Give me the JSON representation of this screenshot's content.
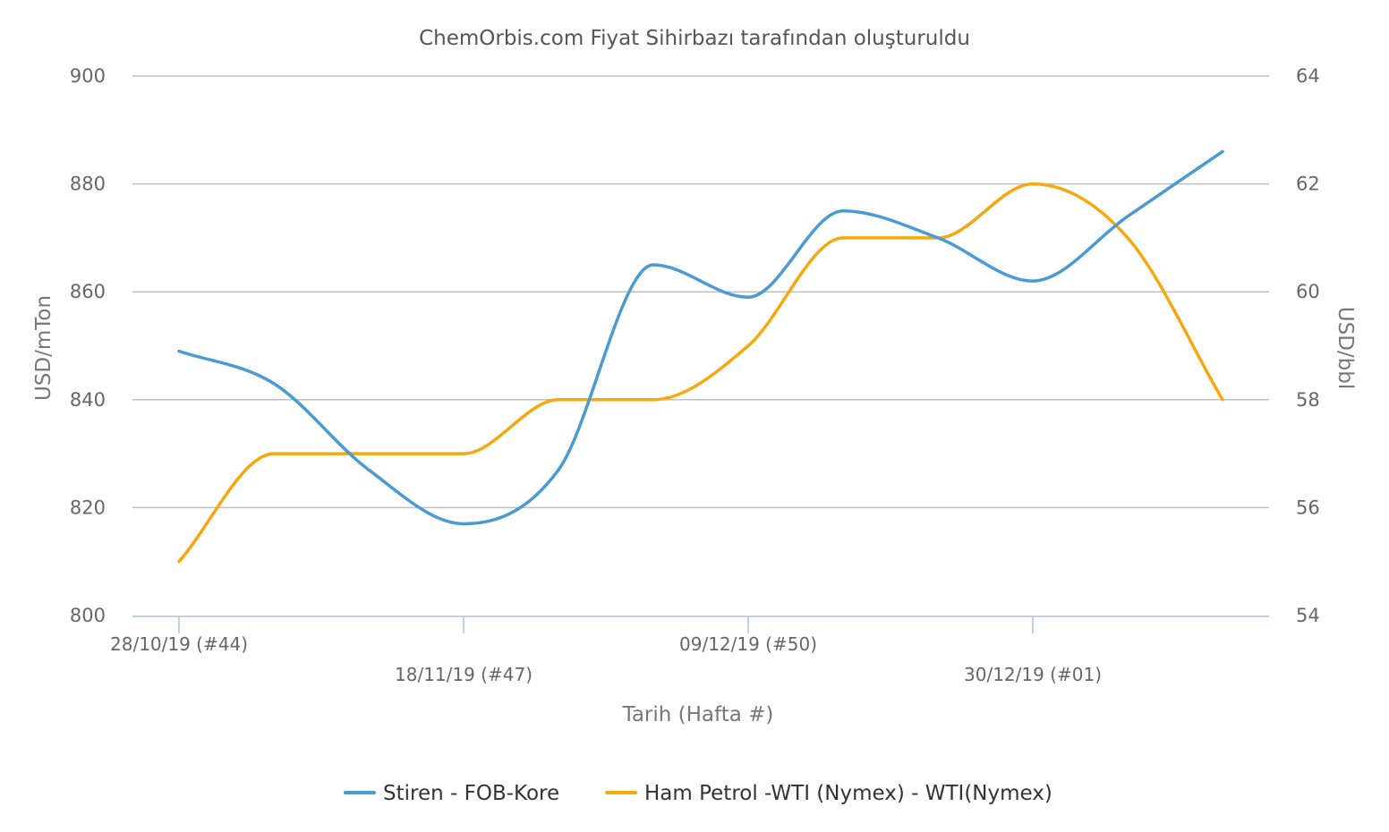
{
  "chart_data": {
    "type": "line",
    "title": "ChemOrbis.com Fiyat Sihirbazı tarafından oluşturuldu",
    "xlabel": "Tarih (Hafta #)",
    "ylabel_left": "USD/mTon",
    "ylabel_right": "USD/bbl",
    "ylim_left": [
      800,
      900
    ],
    "ylim_right": [
      54,
      64
    ],
    "yticks_left": [
      "800",
      "820",
      "840",
      "860",
      "880",
      "900"
    ],
    "yticks_right": [
      "54",
      "56",
      "58",
      "60",
      "62",
      "64"
    ],
    "x_tick_labels": [
      "28/10/19 (#44)",
      "18/11/19 (#47)",
      "09/12/19 (#50)",
      "30/12/19 (#01)"
    ],
    "x": [
      "28/10/19",
      "04/11/19",
      "11/11/19",
      "18/11/19",
      "25/11/19",
      "02/12/19",
      "09/12/19",
      "16/12/19",
      "23/12/19",
      "30/12/19",
      "06/01/20",
      "13/01/20"
    ],
    "series": [
      {
        "name": "Stiren - FOB-Kore",
        "axis": "left",
        "color": "#4a9ad4",
        "values": [
          849,
          843,
          827,
          817,
          827,
          865,
          859,
          875,
          870,
          862,
          874,
          886
        ]
      },
      {
        "name": "Ham Petrol -WTI (Nymex) - WTI(Nymex)",
        "axis": "right",
        "color": "#f5a80f",
        "values": [
          55,
          57,
          57,
          57,
          58,
          58,
          59,
          61,
          61,
          62,
          61,
          58
        ]
      }
    ],
    "grid": true,
    "legend": "bottom"
  }
}
